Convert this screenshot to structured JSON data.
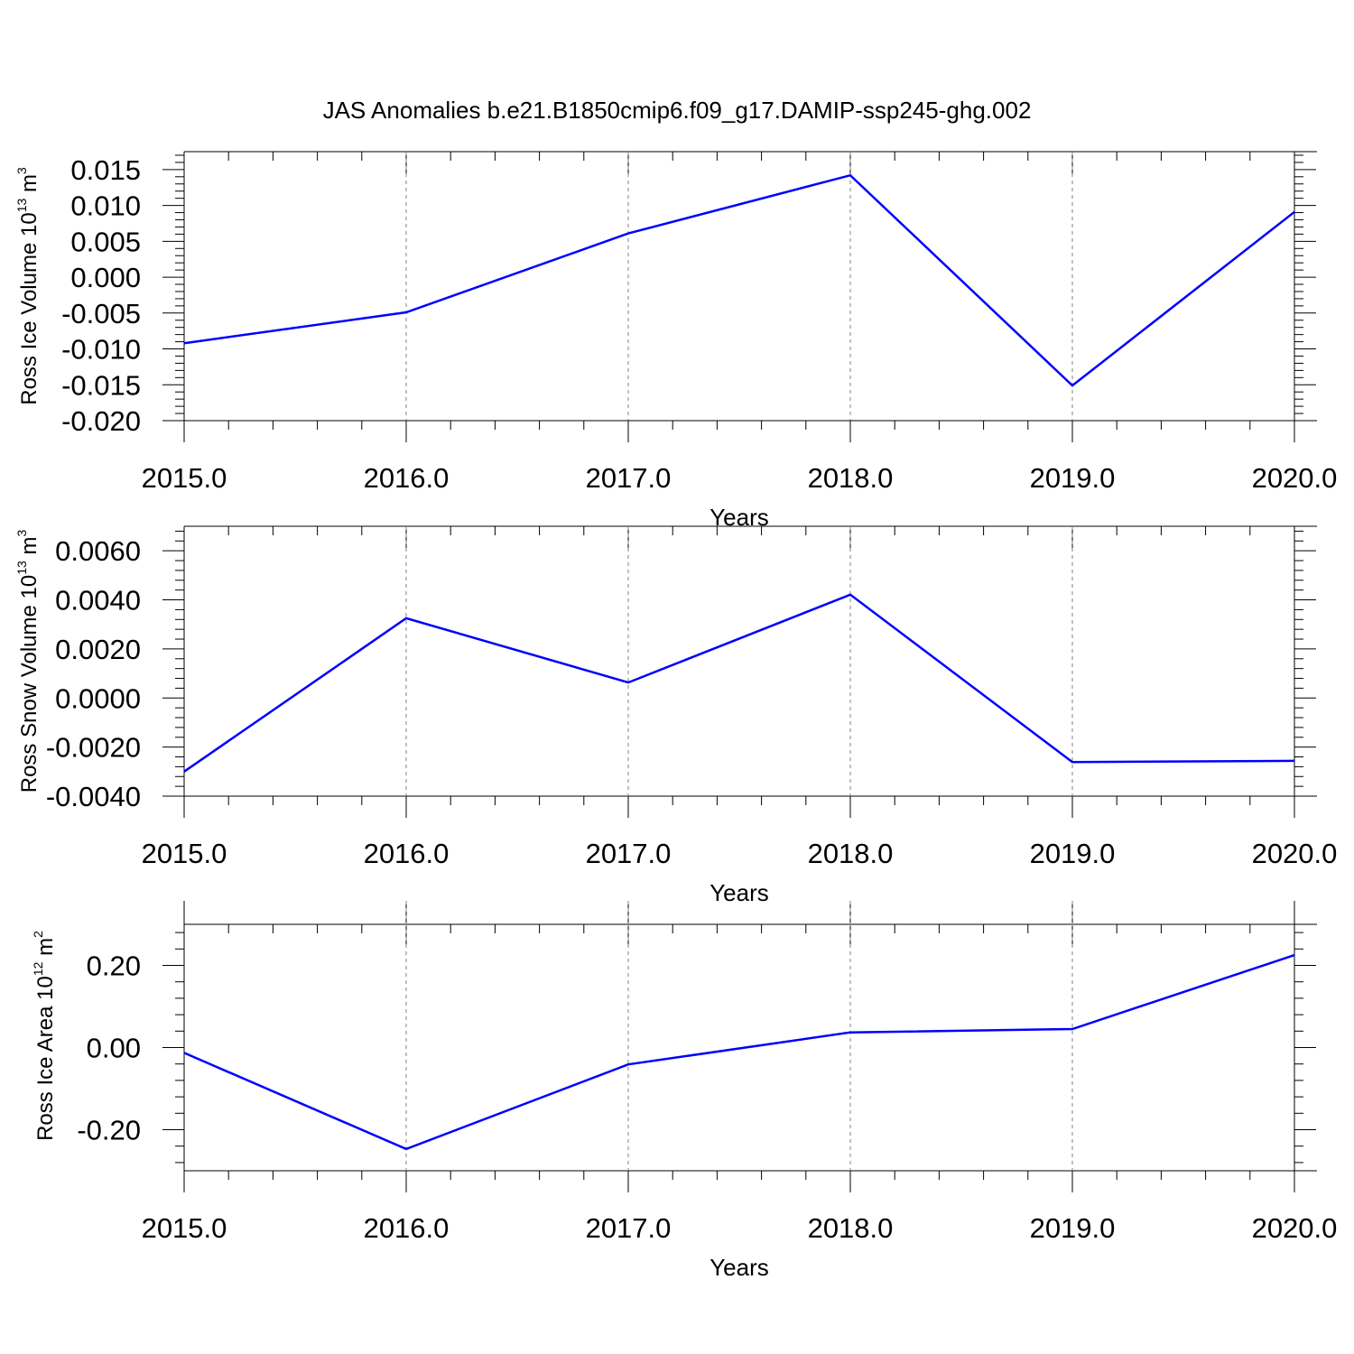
{
  "title": "JAS Anomalies b.e21.B1850cmip6.f09_g17.DAMIP-ssp245-ghg.002",
  "colors": {
    "series": "#0000ff",
    "axis": "#000000",
    "grid": "#808080"
  },
  "chart_data": [
    {
      "type": "line",
      "xlabel": "Years",
      "ylabel": {
        "text": "Ross Ice Volume 10",
        "exponent": "13",
        "unit": " m",
        "unit_exponent": "3"
      },
      "xlim": [
        2015.0,
        2020.0
      ],
      "ylim": [
        -0.02,
        0.0175
      ],
      "xticks": [
        2015.0,
        2016.0,
        2017.0,
        2018.0,
        2019.0,
        2020.0
      ],
      "xtick_labels": [
        "2015.0",
        "2016.0",
        "2017.0",
        "2018.0",
        "2019.0",
        "2020.0"
      ],
      "yticks": [
        0.015,
        0.01,
        0.005,
        0.0,
        -0.005,
        -0.01,
        -0.015,
        -0.02
      ],
      "ytick_labels": [
        "0.015",
        "0.010",
        "0.005",
        "0.000",
        "-0.005",
        "-0.010",
        "-0.015",
        "-0.020"
      ],
      "grid": "vertical dashed at major x ticks",
      "x": [
        2015,
        2016,
        2017,
        2018,
        2019,
        2020
      ],
      "y": [
        -0.0092,
        -0.0049,
        0.0061,
        0.0142,
        -0.0151,
        0.0091
      ]
    },
    {
      "type": "line",
      "xlabel": "Years",
      "ylabel": {
        "text": "Ross Snow Volume 10",
        "exponent": "13",
        "unit": " m",
        "unit_exponent": "3"
      },
      "xlim": [
        2015.0,
        2020.0
      ],
      "ylim": [
        -0.004,
        0.007
      ],
      "xticks": [
        2015.0,
        2016.0,
        2017.0,
        2018.0,
        2019.0,
        2020.0
      ],
      "xtick_labels": [
        "2015.0",
        "2016.0",
        "2017.0",
        "2018.0",
        "2019.0",
        "2020.0"
      ],
      "yticks": [
        0.006,
        0.004,
        0.002,
        0.0,
        -0.002,
        -0.004
      ],
      "ytick_labels": [
        "0.0060",
        "0.0040",
        "0.0020",
        "0.0000",
        "-0.0020",
        "-0.0040"
      ],
      "grid": "vertical dashed at major x ticks",
      "x": [
        2015,
        2016,
        2017,
        2018,
        2019,
        2020
      ],
      "y": [
        -0.003,
        0.00325,
        0.00063,
        0.00421,
        -0.00261,
        -0.00256
      ]
    },
    {
      "type": "line",
      "xlabel": "Years",
      "ylabel": {
        "text": "Ross Ice Area 10",
        "exponent": "12",
        "unit": " m",
        "unit_exponent": "2"
      },
      "xlim": [
        2015.0,
        2020.0
      ],
      "ylim": [
        -0.3,
        0.3
      ],
      "xticks": [
        2015.0,
        2016.0,
        2017.0,
        2018.0,
        2019.0,
        2020.0
      ],
      "xtick_labels": [
        "2015.0",
        "2016.0",
        "2017.0",
        "2018.0",
        "2019.0",
        "2020.0"
      ],
      "yticks": [
        0.2,
        0.0,
        -0.2
      ],
      "ytick_labels": [
        "0.20",
        "0.00",
        "-0.20"
      ],
      "grid": "vertical dashed at major x ticks",
      "x": [
        2015,
        2016,
        2017,
        2018,
        2019,
        2020
      ],
      "y": [
        -0.013,
        -0.247,
        -0.041,
        0.037,
        0.045,
        0.225
      ]
    }
  ]
}
